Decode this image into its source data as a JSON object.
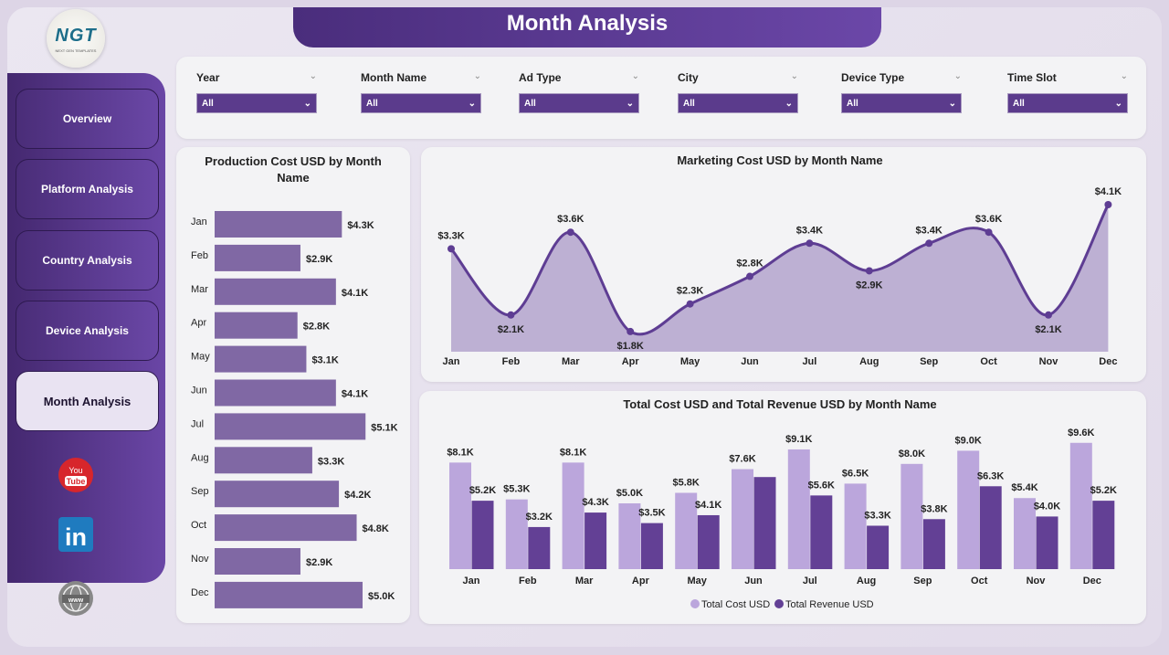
{
  "header": {
    "title": "Month Analysis",
    "logo_text": "NGT",
    "logo_subtext": "NEXT GEN TEMPLATES"
  },
  "sidebar": {
    "items": [
      {
        "label": "Overview"
      },
      {
        "label": "Platform Analysis"
      },
      {
        "label": "Country Analysis"
      },
      {
        "label": "Device Analysis"
      },
      {
        "label": "Month Analysis",
        "active": true
      }
    ],
    "social": [
      "youtube-icon",
      "linkedin-icon",
      "website-icon"
    ]
  },
  "filters": [
    {
      "label": "Year",
      "value": "All"
    },
    {
      "label": "Month Name",
      "value": "All"
    },
    {
      "label": "Ad Type",
      "value": "All"
    },
    {
      "label": "City",
      "value": "All"
    },
    {
      "label": "Device Type",
      "value": "All"
    },
    {
      "label": "Time Slot",
      "value": "All"
    }
  ],
  "colors": {
    "accent": "#5b3b8c",
    "bar": "#8068a4",
    "area": "#b3a3cd",
    "line": "#5e3d93",
    "cost": "#bba6dc",
    "revenue": "#634095"
  },
  "chart_data": [
    {
      "type": "bar",
      "orientation": "horizontal",
      "title": "Production Cost USD by Month Name",
      "categories": [
        "Jan",
        "Feb",
        "Mar",
        "Apr",
        "May",
        "Jun",
        "Jul",
        "Aug",
        "Sep",
        "Oct",
        "Nov",
        "Dec"
      ],
      "values": [
        4.3,
        2.9,
        4.1,
        2.8,
        3.1,
        4.1,
        5.1,
        3.3,
        4.2,
        4.8,
        2.9,
        5.0
      ],
      "labels": [
        "$4.3K",
        "$2.9K",
        "$4.1K",
        "$2.8K",
        "$3.1K",
        "$4.1K",
        "$5.1K",
        "$3.3K",
        "$4.2K",
        "$4.8K",
        "$2.9K",
        "$5.0K"
      ],
      "unit": "K USD"
    },
    {
      "type": "area",
      "title": "Marketing Cost USD by Month Name",
      "categories": [
        "Jan",
        "Feb",
        "Mar",
        "Apr",
        "May",
        "Jun",
        "Jul",
        "Aug",
        "Sep",
        "Oct",
        "Nov",
        "Dec"
      ],
      "values": [
        3.3,
        2.1,
        3.6,
        1.8,
        2.3,
        2.8,
        3.4,
        2.9,
        3.4,
        3.6,
        2.1,
        4.1
      ],
      "labels": [
        "$3.3K",
        "$2.1K",
        "$3.6K",
        "$1.8K",
        "$2.3K",
        "$2.8K",
        "$3.4K",
        "$2.9K",
        "$3.4K",
        "$3.6K",
        "$2.1K",
        "$4.1K"
      ],
      "unit": "K USD"
    },
    {
      "type": "bar",
      "title": "Total Cost USD and Total Revenue USD by Month Name",
      "categories": [
        "Jan",
        "Feb",
        "Mar",
        "Apr",
        "May",
        "Jun",
        "Jul",
        "Aug",
        "Sep",
        "Oct",
        "Nov",
        "Dec"
      ],
      "legend": "bottom",
      "series": [
        {
          "name": "Total Cost USD",
          "values": [
            8.1,
            5.3,
            8.1,
            5.0,
            5.8,
            7.6,
            9.1,
            6.5,
            8.0,
            9.0,
            5.4,
            9.6
          ],
          "labels": [
            "$8.1K",
            "$5.3K",
            "$8.1K",
            "$5.0K",
            "$5.8K",
            "$7.6K",
            "$9.1K",
            "$6.5K",
            "$8.0K",
            "$9.0K",
            "$5.4K",
            "$9.6K"
          ]
        },
        {
          "name": "Total Revenue USD",
          "values": [
            5.2,
            3.2,
            4.3,
            3.5,
            4.1,
            7.0,
            5.6,
            3.3,
            3.8,
            6.3,
            4.0,
            5.2
          ],
          "labels": [
            "$5.2K",
            "$3.2K",
            "$4.3K",
            "$3.5K",
            "$4.1K",
            "",
            "$5.6K",
            "$3.3K",
            "$3.8K",
            "$6.3K",
            "$4.0K",
            "$5.2K"
          ]
        }
      ],
      "unit": "K USD"
    }
  ]
}
